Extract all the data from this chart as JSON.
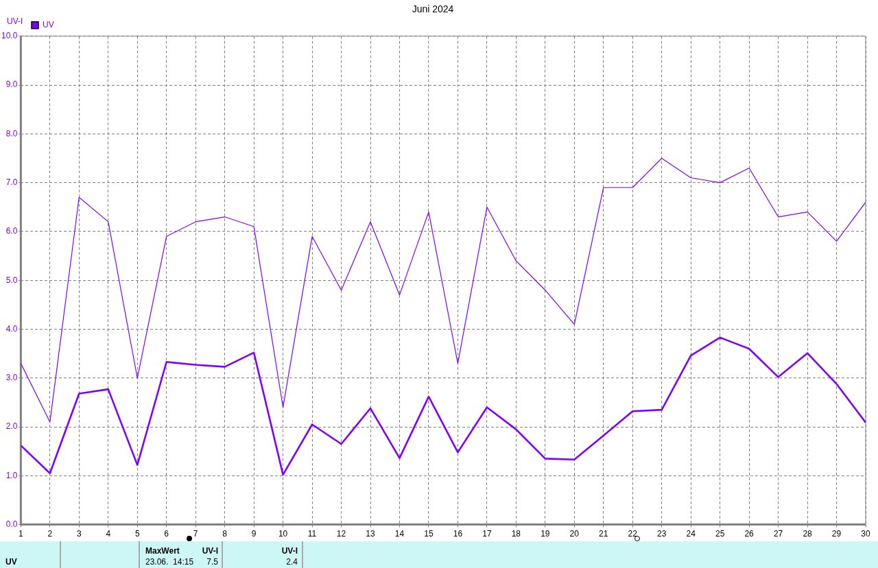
{
  "chart_data": {
    "type": "line",
    "title": "Juni 2024",
    "ylabel": "UV-I",
    "x": [
      1,
      2,
      3,
      4,
      5,
      6,
      7,
      8,
      9,
      10,
      11,
      12,
      13,
      14,
      15,
      16,
      17,
      18,
      19,
      20,
      21,
      22,
      23,
      24,
      25,
      26,
      27,
      28,
      29,
      30
    ],
    "series": [
      {
        "name": "UV",
        "color": "#8000ff",
        "values": [
          3.3,
          2.1,
          6.7,
          6.2,
          3.0,
          5.9,
          6.2,
          6.3,
          6.1,
          2.4,
          5.9,
          4.8,
          6.2,
          4.7,
          6.4,
          3.3,
          6.5,
          5.4,
          4.8,
          4.1,
          6.9,
          6.9,
          7.5,
          7.1,
          7.0,
          7.3,
          6.3,
          6.4,
          5.8,
          6.6
        ]
      },
      {
        "color": "#8000ff",
        "values": [
          1.62,
          1.05,
          2.68,
          2.77,
          1.22,
          3.33,
          3.27,
          3.23,
          3.52,
          1.02,
          2.05,
          1.65,
          2.38,
          1.36,
          2.62,
          1.48,
          2.4,
          1.95,
          1.35,
          1.33,
          1.82,
          2.32,
          2.35,
          3.46,
          3.83,
          3.6,
          3.02,
          3.51,
          2.88,
          2.09
        ]
      }
    ],
    "xlim": [
      1,
      30
    ],
    "xticks": [
      1,
      2,
      3,
      4,
      5,
      6,
      7,
      8,
      9,
      10,
      11,
      12,
      13,
      14,
      15,
      16,
      17,
      18,
      19,
      20,
      21,
      22,
      23,
      24,
      25,
      26,
      27,
      28,
      29,
      30
    ],
    "ylim": [
      0,
      10
    ],
    "yticks": [
      {
        "value": 0,
        "label": "0.0"
      },
      {
        "value": 1,
        "label": "1.0"
      },
      {
        "value": 2,
        "label": "2.0"
      },
      {
        "value": 3,
        "label": "3.0"
      },
      {
        "value": 4,
        "label": "4.0"
      },
      {
        "value": 5,
        "label": "5.0"
      },
      {
        "value": 6,
        "label": "6.0"
      },
      {
        "value": 7,
        "label": "7.0"
      },
      {
        "value": 8,
        "label": "8.0"
      },
      {
        "value": 9,
        "label": "9.0"
      },
      {
        "value": 10,
        "label": "10.0"
      }
    ],
    "grid": true,
    "legend": "top left",
    "marker": "none",
    "line_style": "solid",
    "annotations": [
      "UV",
      "MaxWert",
      "UV-I",
      "23.06.  14:15",
      "7.5",
      "UV-I",
      "2.4"
    ]
  }
}
